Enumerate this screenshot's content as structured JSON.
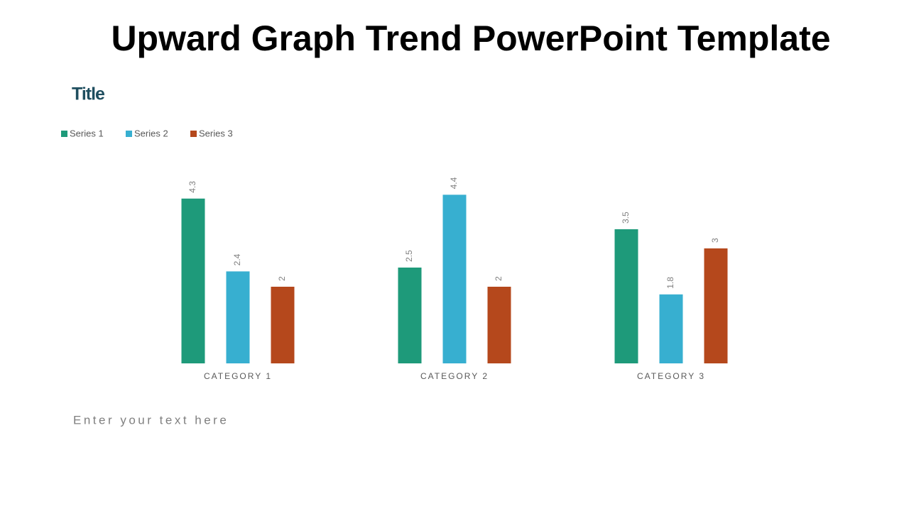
{
  "slide_title": "Upward Graph Trend PowerPoint Template",
  "body_text": "Enter your text here",
  "chart_data": {
    "type": "bar",
    "title": "Title",
    "categories": [
      "CATEGORY 1",
      "CATEGORY 2",
      "CATEGORY 3"
    ],
    "series": [
      {
        "name": "Series 1",
        "color": "#1e9a7a",
        "values": [
          4.3,
          2.5,
          3.5
        ]
      },
      {
        "name": "Series 2",
        "color": "#37afd0",
        "values": [
          2.4,
          4.4,
          1.8
        ]
      },
      {
        "name": "Series 3",
        "color": "#b5481c",
        "values": [
          2,
          2,
          3
        ]
      }
    ],
    "ylim": [
      0,
      5
    ]
  }
}
